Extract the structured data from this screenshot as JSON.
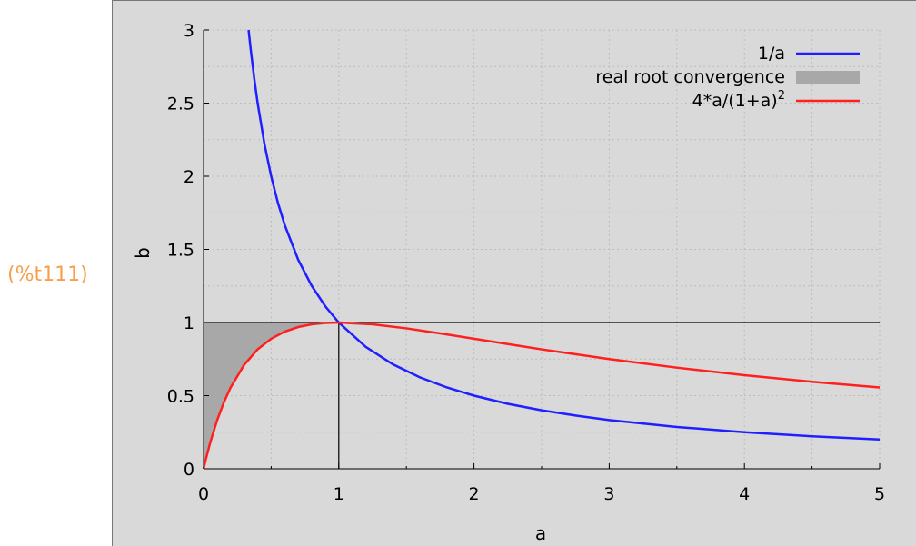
{
  "output_label": "(%t111)",
  "chart_data": {
    "type": "line",
    "xlabel": "a",
    "ylabel": "b",
    "xlim": [
      0,
      5
    ],
    "ylim": [
      0,
      3
    ],
    "x_ticks": [
      "0",
      "1",
      "2",
      "3",
      "4",
      "5"
    ],
    "y_ticks": [
      "0",
      "0.5",
      "1",
      "1.5",
      "2",
      "2.5",
      "3"
    ],
    "grid": true,
    "legend_position": "top-right",
    "series": [
      {
        "name": "1/a",
        "color": "#1f1fff",
        "x": [
          0.333,
          0.35,
          0.375,
          0.4,
          0.45,
          0.5,
          0.55,
          0.6,
          0.7,
          0.8,
          0.9,
          1.0,
          1.2,
          1.4,
          1.6,
          1.8,
          2.0,
          2.25,
          2.5,
          2.75,
          3.0,
          3.5,
          4.0,
          4.5,
          5.0
        ],
        "y": [
          3.0,
          2.857,
          2.667,
          2.5,
          2.222,
          2.0,
          1.818,
          1.667,
          1.429,
          1.25,
          1.111,
          1.0,
          0.833,
          0.714,
          0.625,
          0.556,
          0.5,
          0.444,
          0.4,
          0.364,
          0.333,
          0.286,
          0.25,
          0.222,
          0.2
        ]
      },
      {
        "name": "real root convergence",
        "color": "#a8a8a8",
        "type": "area",
        "x": [
          0.0,
          0.02,
          0.05,
          0.1,
          0.15,
          0.2,
          0.3,
          0.4,
          0.5,
          0.6,
          0.7,
          0.8,
          0.9,
          1.0
        ],
        "y_lower": [
          0.0,
          0.0769,
          0.1814,
          0.3306,
          0.4537,
          0.5556,
          0.7101,
          0.8163,
          0.8889,
          0.9375,
          0.9689,
          0.9877,
          0.9972,
          1.0
        ],
        "y_upper": [
          1.0,
          1.0,
          1.0,
          1.0,
          1.0,
          1.0,
          1.0,
          1.0,
          1.0,
          1.0,
          1.0,
          1.0,
          1.0,
          1.0
        ]
      },
      {
        "name": "4*a/(1+a)",
        "name_superscript": "2",
        "color": "#ff1f1f",
        "x": [
          0.0,
          0.02,
          0.05,
          0.1,
          0.15,
          0.2,
          0.3,
          0.4,
          0.5,
          0.6,
          0.7,
          0.8,
          0.9,
          1.0,
          1.25,
          1.5,
          1.75,
          2.0,
          2.5,
          3.0,
          3.5,
          4.0,
          4.5,
          5.0
        ],
        "y": [
          0.0,
          0.0769,
          0.1814,
          0.3306,
          0.4537,
          0.5556,
          0.7101,
          0.8163,
          0.8889,
          0.9375,
          0.9689,
          0.9877,
          0.9972,
          1.0,
          0.9877,
          0.96,
          0.9256,
          0.8889,
          0.8163,
          0.75,
          0.6914,
          0.64,
          0.595,
          0.5556
        ]
      }
    ],
    "reference_lines": [
      {
        "type": "horizontal",
        "y": 1,
        "x_from": 0,
        "x_to": 5
      },
      {
        "type": "vertical",
        "x": 1,
        "y_from": 0,
        "y_to": 1
      }
    ]
  }
}
